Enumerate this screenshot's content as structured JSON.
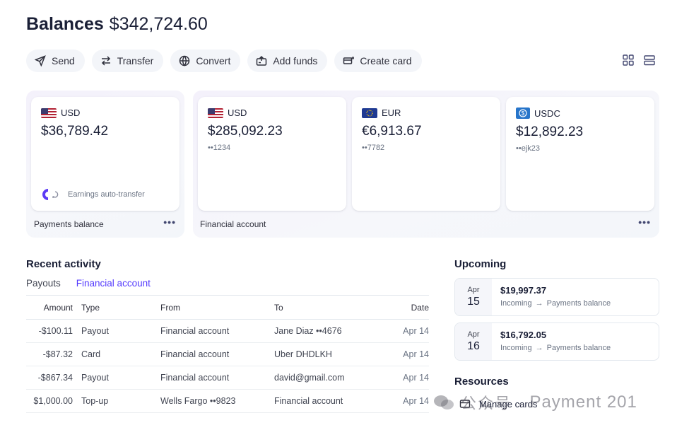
{
  "header": {
    "title": "Balances",
    "total": "$342,724.60"
  },
  "actions": [
    {
      "label": "Send",
      "icon": "send-icon"
    },
    {
      "label": "Transfer",
      "icon": "transfer-icon"
    },
    {
      "label": "Convert",
      "icon": "globe-icon"
    },
    {
      "label": "Add funds",
      "icon": "add-funds-icon"
    },
    {
      "label": "Create card",
      "icon": "card-icon"
    }
  ],
  "view_toggles": [
    "grid-view-icon",
    "list-view-icon"
  ],
  "payments_balance": {
    "label": "Payments balance",
    "card": {
      "currency": "USD",
      "amount": "$36,789.42",
      "auto_transfer": "Earnings auto-transfer"
    }
  },
  "financial_account": {
    "label": "Financial account",
    "cards": [
      {
        "currency": "USD",
        "amount": "$285,092.23",
        "account": "••1234"
      },
      {
        "currency": "EUR",
        "amount": "€6,913.67",
        "account": "••7782"
      },
      {
        "currency": "USDC",
        "amount": "$12,892.23",
        "account": "••ejk23"
      }
    ]
  },
  "recent_activity": {
    "title": "Recent activity",
    "tabs": [
      {
        "label": "Payouts",
        "active": false
      },
      {
        "label": "Financial account",
        "active": true
      }
    ],
    "columns": {
      "amount": "Amount",
      "type": "Type",
      "from": "From",
      "to": "To",
      "date": "Date"
    },
    "rows": [
      {
        "amount": "-$100.11",
        "type": "Payout",
        "from": "Financial account",
        "to": "Jane Diaz ••4676",
        "date": "Apr 14"
      },
      {
        "amount": "-$87.32",
        "type": "Card",
        "from": "Financial account",
        "to": "Uber DHDLKH",
        "date": "Apr 14"
      },
      {
        "amount": "-$867.34",
        "type": "Payout",
        "from": "Financial account",
        "to": "david@gmail.com",
        "date": "Apr 14"
      },
      {
        "amount": "$1,000.00",
        "type": "Top-up",
        "from": "Wells Fargo ••9823",
        "to": "Financial account",
        "date": "Apr 14"
      }
    ]
  },
  "upcoming": {
    "title": "Upcoming",
    "items": [
      {
        "month": "Apr",
        "day": "15",
        "amount": "$19,997.37",
        "from": "Incoming",
        "to": "Payments balance"
      },
      {
        "month": "Apr",
        "day": "16",
        "amount": "$16,792.05",
        "from": "Incoming",
        "to": "Payments balance"
      }
    ]
  },
  "resources": {
    "title": "Resources",
    "items": [
      {
        "label": "Manage cards",
        "icon": "card-icon"
      }
    ]
  },
  "watermark": {
    "zh": "公众号 ·",
    "en": "Payment 201"
  },
  "colors": {
    "accent": "#533afd",
    "text": "#1a1f36",
    "muted": "#6a7383"
  }
}
